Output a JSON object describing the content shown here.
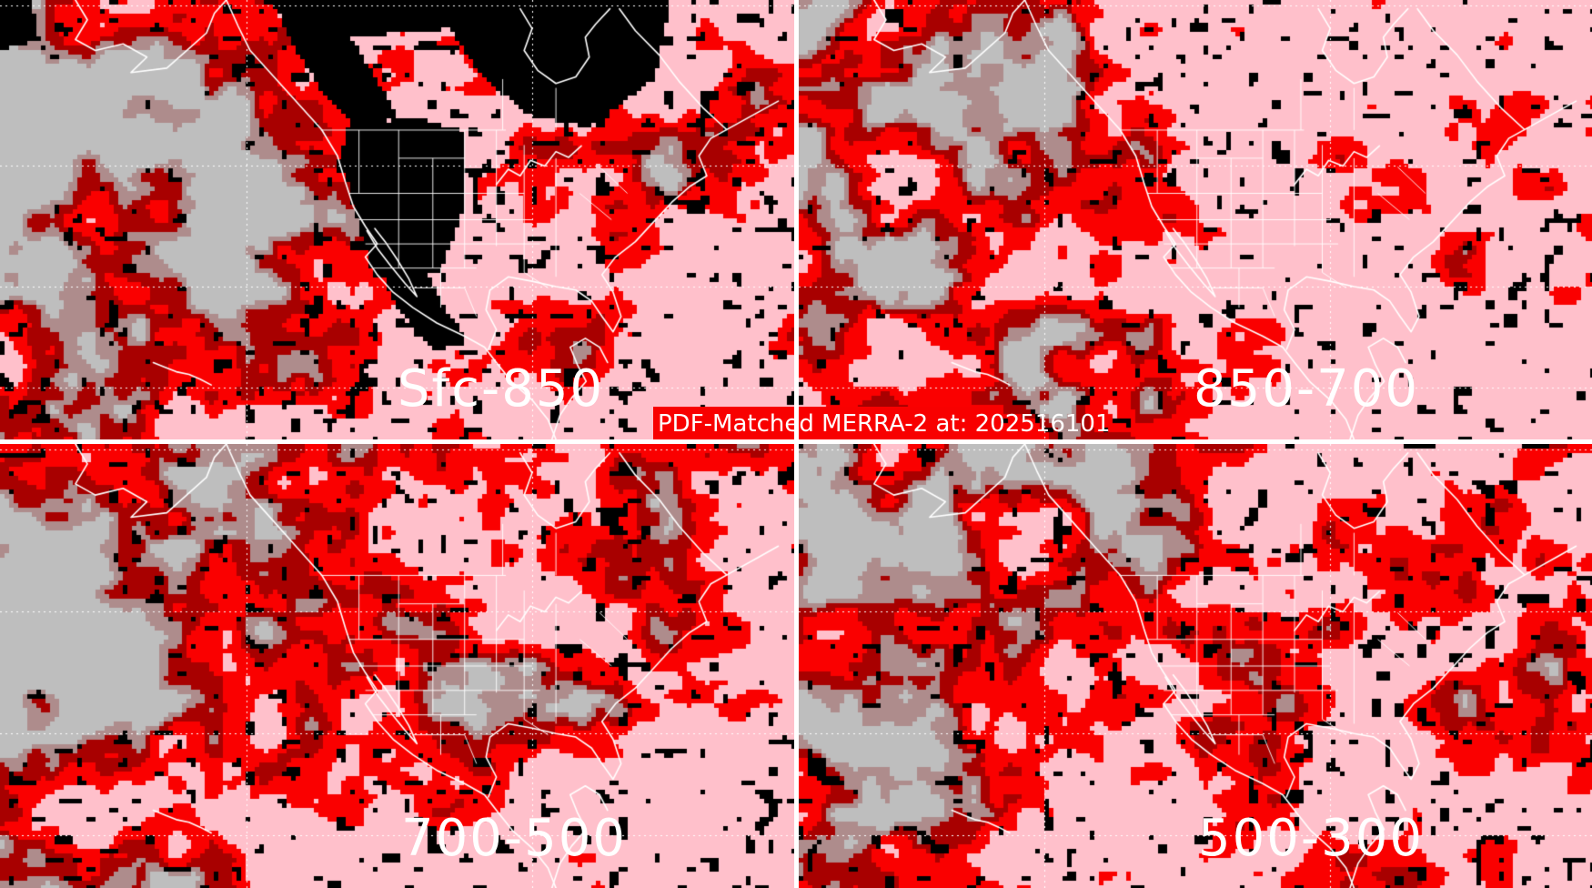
{
  "banner": {
    "label": "PDF-Matched MERRA-2 at: 202516101",
    "background_color": "#F80000",
    "text_color": "#FFFFFF"
  },
  "panels": [
    {
      "position": "top-left",
      "label": "Sfc-850"
    },
    {
      "position": "top-right",
      "label": "850-700"
    },
    {
      "position": "bottom-left",
      "label": "700-500"
    },
    {
      "position": "bottom-right",
      "label": "500-300"
    }
  ],
  "palette": {
    "ocean_gray": "#BEBEBE",
    "muted_shade": "#AE8C8C",
    "dark_shade": "#A80000",
    "mid_shade": "#FA0000",
    "light_shade": "#FFC0CB",
    "exceed_shade": "#000000",
    "map_lines": "#FFFFFF",
    "divider": "#FFFFFF",
    "label_text": "#FFFFFF"
  }
}
